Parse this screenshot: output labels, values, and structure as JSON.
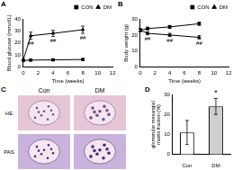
{
  "chart_data": [
    {
      "title": "A",
      "type": "line",
      "x_label": "Time (weeks)",
      "y_label": "Blood glucose (mmol/L)",
      "x": [
        0,
        1,
        4,
        8
      ],
      "xlim": [
        0,
        12
      ],
      "xticks": [
        0,
        2,
        4,
        6,
        8,
        10,
        12
      ],
      "ylim": [
        0,
        40
      ],
      "yticks": [
        0,
        10,
        20,
        30,
        40
      ],
      "grid": false,
      "legend": "top right",
      "series": [
        {
          "name": "CON",
          "color": "#000000",
          "marker": "square",
          "values": [
            5.5,
            5.8,
            6.0,
            6.3
          ],
          "errors": [
            0.5,
            0.5,
            0.6,
            0.6
          ]
        },
        {
          "name": "DM",
          "color": "#000000",
          "marker": "triangle",
          "values": [
            5.8,
            26,
            28,
            31
          ],
          "errors": [
            0.6,
            3,
            2.5,
            3
          ]
        }
      ],
      "annotations": [
        {
          "series": "DM",
          "x": 1,
          "text": "##"
        },
        {
          "series": "DM",
          "x": 4,
          "text": "##"
        },
        {
          "series": "DM",
          "x": 8,
          "text": "##"
        }
      ]
    },
    {
      "title": "B",
      "type": "line",
      "x_label": "Time (weeks)",
      "y_label": "Body weight (g)",
      "x": [
        0,
        1,
        4,
        8
      ],
      "xlim": [
        0,
        12
      ],
      "xticks": [
        0,
        2,
        4,
        6,
        8,
        10,
        12
      ],
      "ylim": [
        0,
        30
      ],
      "yticks": [
        0,
        10,
        20,
        30
      ],
      "grid": false,
      "legend": "top right",
      "series": [
        {
          "name": "CON",
          "color": "#000000",
          "marker": "square",
          "values": [
            23,
            24,
            25,
            27
          ],
          "errors": [
            0.8,
            0.8,
            0.9,
            1
          ]
        },
        {
          "name": "DM",
          "color": "#000000",
          "marker": "triangle",
          "values": [
            23,
            21,
            20,
            18.5
          ],
          "errors": [
            0.8,
            0.9,
            1,
            1
          ]
        }
      ],
      "annotations": [
        {
          "series": "DM",
          "x": 1,
          "text": "##"
        },
        {
          "series": "DM",
          "x": 4,
          "text": "##"
        },
        {
          "series": "DM",
          "x": 8,
          "text": "##"
        }
      ]
    },
    {
      "title": "D",
      "type": "bar",
      "categories": [
        "Con",
        "DM"
      ],
      "values": [
        11,
        24
      ],
      "errors": [
        6,
        4
      ],
      "colors": [
        "#ffffff",
        "#cfcfcf"
      ],
      "y_label": [
        "glomerular mesangial",
        "matrix fraction (%)"
      ],
      "ylim": [
        0,
        30
      ],
      "yticks": [
        0,
        10,
        20,
        30
      ],
      "grid": false,
      "annotations": [
        {
          "category": "DM",
          "text": "*"
        }
      ]
    }
  ],
  "image_panel": {
    "title": "C",
    "columns": [
      "Con",
      "DM"
    ],
    "rows": [
      "HE",
      "PAS"
    ]
  }
}
